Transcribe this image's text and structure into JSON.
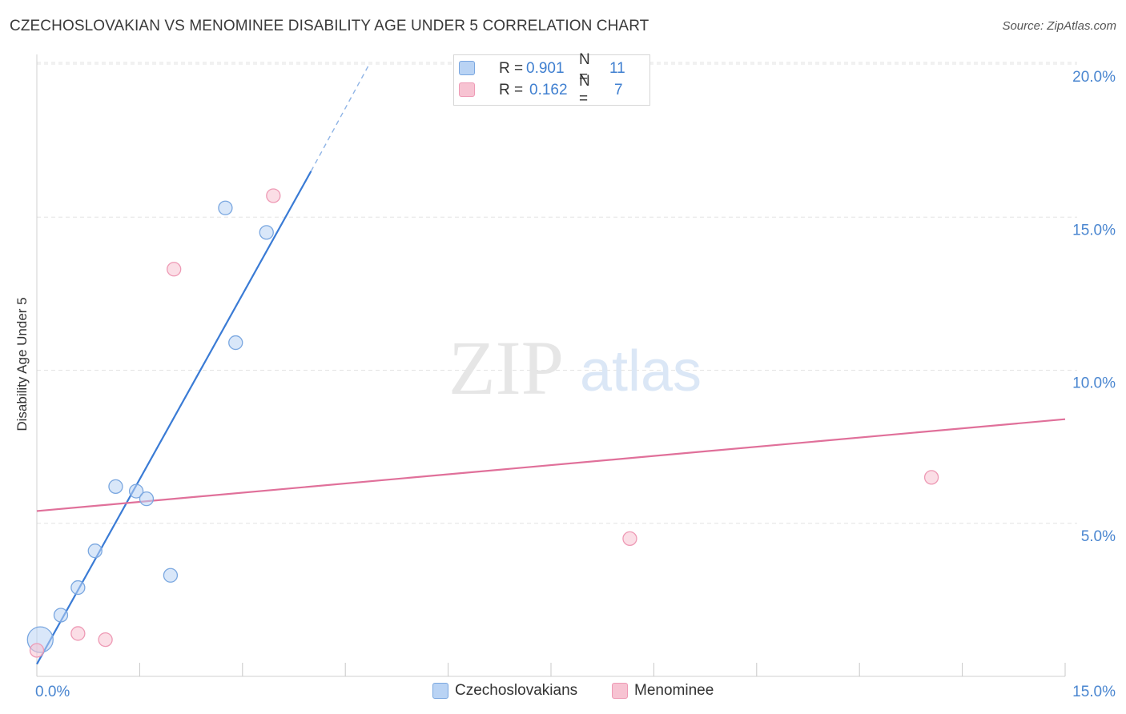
{
  "title": "CZECHOSLOVAKIAN VS MENOMINEE DISABILITY AGE UNDER 5 CORRELATION CHART",
  "source": "Source: ZipAtlas.com",
  "watermark": {
    "zip": "ZIP",
    "atlas": "atlas"
  },
  "legend_top": {
    "rows": [
      {
        "r_label": "R =",
        "r_value": "0.901",
        "n_label": "N =",
        "n_value": "11",
        "color_fill": "#b9d3f4",
        "color_stroke": "#7aa7e0"
      },
      {
        "r_label": "R =",
        "r_value": "0.162",
        "n_label": "N =",
        "n_value": "7",
        "color_fill": "#f7c3d2",
        "color_stroke": "#ee9ab5"
      }
    ]
  },
  "legend_bottom": [
    {
      "label": "Czechoslovakians",
      "color_fill": "#b9d3f4",
      "color_stroke": "#7aa7e0"
    },
    {
      "label": "Menominee",
      "color_fill": "#f7c3d2",
      "color_stroke": "#ee9ab5"
    }
  ],
  "chart_data": {
    "type": "scatter",
    "title": "CZECHOSLOVAKIAN VS MENOMINEE DISABILITY AGE UNDER 5 CORRELATION CHART",
    "xlabel": "",
    "ylabel": "Disability Age Under 5",
    "xlim": [
      0,
      15
    ],
    "ylim": [
      0,
      20
    ],
    "x_tick_labels": [
      "0.0%",
      "15.0%"
    ],
    "y_ticks": [
      5,
      10,
      15,
      20
    ],
    "y_tick_labels": [
      "5.0%",
      "10.0%",
      "15.0%",
      "20.0%"
    ],
    "grid": true,
    "legend": "bottom-center",
    "series": [
      {
        "name": "Czechoslovakians",
        "color": "#3a7bd5",
        "points": [
          {
            "x": 0.05,
            "y": 1.2,
            "big": true
          },
          {
            "x": 0.35,
            "y": 2.0
          },
          {
            "x": 0.6,
            "y": 2.9
          },
          {
            "x": 0.85,
            "y": 4.1
          },
          {
            "x": 1.15,
            "y": 6.2
          },
          {
            "x": 1.45,
            "y": 6.05
          },
          {
            "x": 1.6,
            "y": 5.8
          },
          {
            "x": 1.95,
            "y": 3.3
          },
          {
            "x": 2.75,
            "y": 15.3
          },
          {
            "x": 2.9,
            "y": 10.9
          },
          {
            "x": 3.35,
            "y": 14.5
          }
        ],
        "trend": {
          "r": 0.901,
          "n": 11,
          "x0": 0.0,
          "y0": 0.4,
          "x1": 4.0,
          "y1": 16.5,
          "dash_x1": 4.85,
          "dash_y1": 20.0
        }
      },
      {
        "name": "Menominee",
        "color": "#e0709a",
        "points": [
          {
            "x": 0.0,
            "y": 0.85
          },
          {
            "x": 0.6,
            "y": 1.4
          },
          {
            "x": 1.0,
            "y": 1.2
          },
          {
            "x": 2.0,
            "y": 13.3
          },
          {
            "x": 3.45,
            "y": 15.7
          },
          {
            "x": 8.65,
            "y": 4.5
          },
          {
            "x": 13.05,
            "y": 6.5
          }
        ],
        "trend": {
          "r": 0.162,
          "n": 7,
          "x0": 0.0,
          "y0": 5.4,
          "x1": 15.0,
          "y1": 8.4
        }
      }
    ]
  }
}
